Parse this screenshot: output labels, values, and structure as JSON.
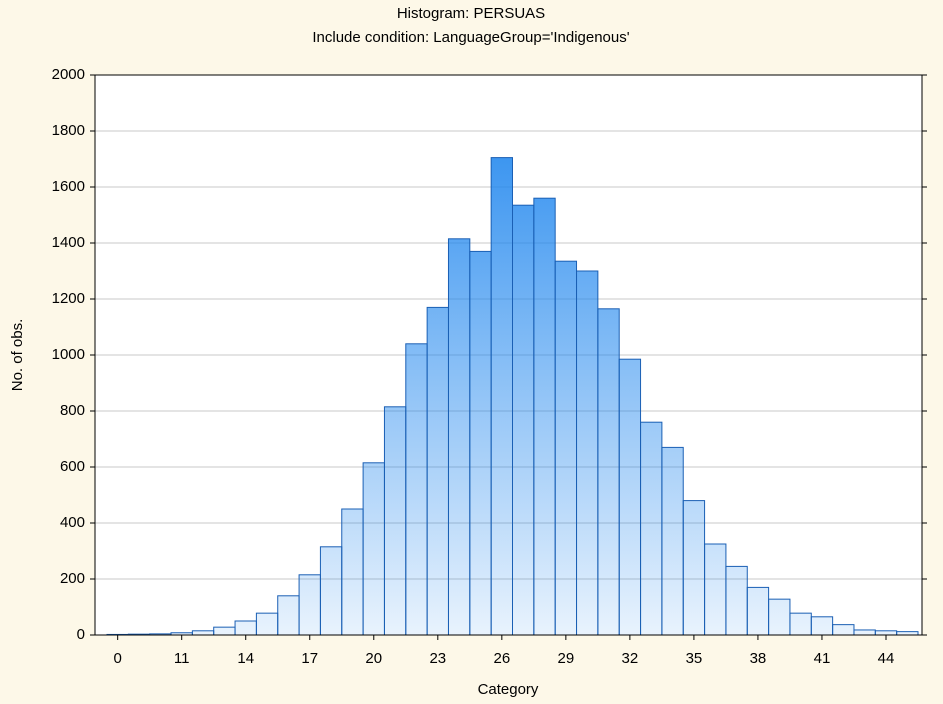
{
  "chart_data": {
    "type": "bar",
    "title": "Histogram: PERSUAS",
    "subtitle": "Include condition: LanguageGroup='Indigenous'",
    "x_label": "Category",
    "y_label": "No. of obs.",
    "categories": [
      "0",
      null,
      null,
      "11",
      null,
      null,
      "14",
      null,
      null,
      "17",
      null,
      null,
      "20",
      null,
      null,
      "23",
      null,
      null,
      "26",
      null,
      null,
      "29",
      null,
      null,
      "32",
      null,
      null,
      "35",
      null,
      null,
      "38",
      null,
      null,
      "41",
      null,
      null,
      "44",
      null
    ],
    "values": [
      2,
      3,
      4,
      8,
      15,
      28,
      50,
      78,
      140,
      215,
      315,
      450,
      615,
      815,
      1040,
      1170,
      1415,
      1370,
      1705,
      1535,
      1560,
      1335,
      1300,
      1165,
      985,
      760,
      670,
      480,
      325,
      245,
      170,
      128,
      78,
      65,
      37,
      18,
      15,
      12
    ],
    "color": "#1f86ee",
    "ylim": [
      0,
      2000
    ],
    "yticks": [
      0,
      200,
      400,
      600,
      800,
      1000,
      1200,
      1400,
      1600,
      1800,
      2000
    ],
    "grid": true
  }
}
